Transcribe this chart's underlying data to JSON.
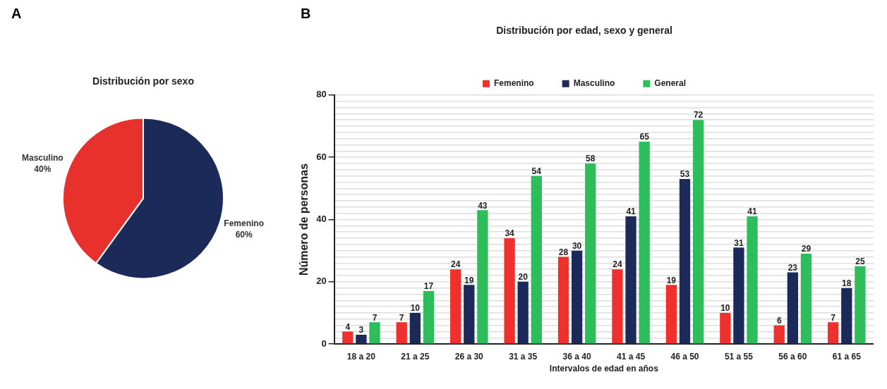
{
  "chart_data": [
    {
      "type": "pie",
      "title": "Distribución por sexo",
      "annotations": [
        "A"
      ],
      "categories": [
        "Femenino",
        "Masculino"
      ],
      "values": [
        60,
        40
      ],
      "colors": [
        "#1c2a5a",
        "#e8302c"
      ],
      "value_labels": [
        "60%",
        "40%"
      ],
      "legend": false
    },
    {
      "type": "bar",
      "title": "Distribución por edad, sexo y general",
      "annotations": [
        "B"
      ],
      "xlabel": "Intervalos de edad en años",
      "ylabel": "Número de personas",
      "categories": [
        "18 a 20",
        "21 a 25",
        "26 a 30",
        "31 a 35",
        "36 a 40",
        "41 a 45",
        "46 a 50",
        "51 a 55",
        "56 a 60",
        "61 a 65"
      ],
      "series": [
        {
          "name": "Femenino",
          "color": "#f0302c",
          "values": [
            4,
            7,
            24,
            34,
            28,
            24,
            19,
            10,
            6,
            7
          ]
        },
        {
          "name": "Masculino",
          "color": "#1c2a5a",
          "values": [
            3,
            10,
            19,
            20,
            30,
            41,
            53,
            31,
            23,
            18
          ]
        },
        {
          "name": "General",
          "color": "#2dbd5a",
          "values": [
            7,
            17,
            43,
            54,
            58,
            65,
            72,
            41,
            29,
            25
          ]
        }
      ],
      "ylim": [
        0,
        80
      ],
      "yticks": [
        0,
        {
          "value": 2,
          "label": null
        },
        {
          "value": 4,
          "label": null
        },
        {
          "value": 6,
          "label": null
        },
        {
          "value": 8,
          "label": null
        },
        {
          "value": 10,
          "label": null
        },
        {
          "value": 12,
          "label": null
        },
        {
          "value": 14,
          "label": null
        },
        {
          "value": 16,
          "label": null
        },
        {
          "value": 18,
          "label": null
        },
        20,
        {
          "value": 22,
          "label": null
        },
        {
          "value": 24,
          "label": null
        },
        {
          "value": 26,
          "label": null
        },
        {
          "value": 28,
          "label": null
        },
        {
          "value": 30,
          "label": null
        },
        {
          "value": 32,
          "label": null
        },
        {
          "value": 34,
          "label": null
        },
        {
          "value": 36,
          "label": null
        },
        {
          "value": 38,
          "label": null
        },
        40,
        {
          "value": 42,
          "label": null
        },
        {
          "value": 44,
          "label": null
        },
        {
          "value": 46,
          "label": null
        },
        {
          "value": 48,
          "label": null
        },
        {
          "value": 50,
          "label": null
        },
        {
          "value": 52,
          "label": null
        },
        {
          "value": 54,
          "label": null
        },
        {
          "value": 56,
          "label": null
        },
        {
          "value": 58,
          "label": null
        },
        60,
        {
          "value": 62,
          "label": null
        },
        {
          "value": 64,
          "label": null
        },
        {
          "value": 66,
          "label": null
        },
        {
          "value": 68,
          "label": null
        },
        {
          "value": 70,
          "label": null
        },
        {
          "value": 72,
          "label": null
        },
        {
          "value": 74,
          "label": null
        },
        {
          "value": 76,
          "label": null
        },
        {
          "value": 78,
          "label": null
        },
        80
      ],
      "grid": "y",
      "legend": "top",
      "data_labels": true
    }
  ]
}
